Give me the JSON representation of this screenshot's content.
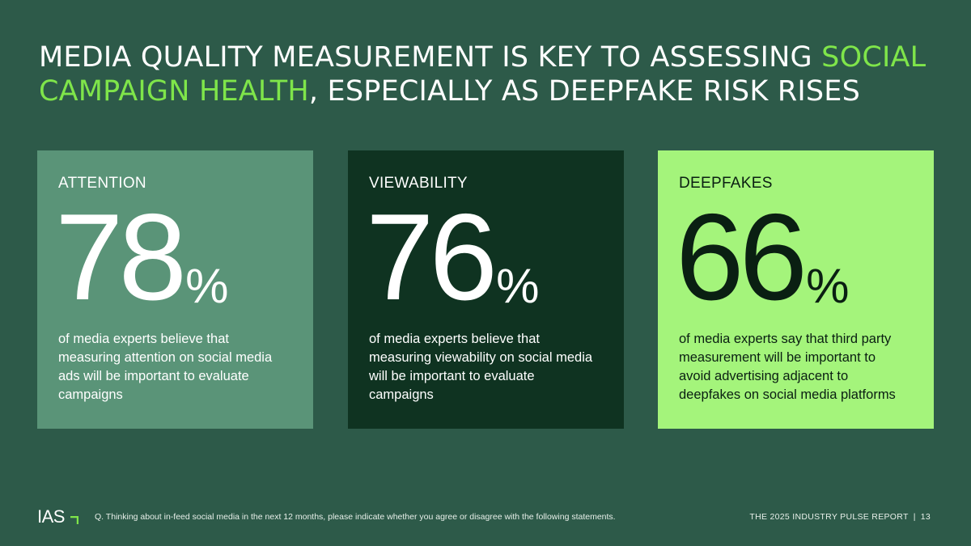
{
  "colors": {
    "background": "#2d5a49",
    "accent": "#7fe54a",
    "card_attention": "#5a9478",
    "card_viewability": "#0f3321",
    "card_deepfakes": "#a4f47b"
  },
  "title": {
    "part1": "MEDIA QUALITY MEASUREMENT IS KEY TO ASSESSING ",
    "highlight": "SOCIAL CAMPAIGN HEALTH",
    "part2": ", ESPECIALLY AS DEEPFAKE RISK RISES"
  },
  "cards": [
    {
      "label": "ATTENTION",
      "value": "78",
      "unit": "%",
      "description": "of media experts believe that measuring attention on social media ads will be important to evaluate campaigns"
    },
    {
      "label": "VIEWABILITY",
      "value": "76",
      "unit": "%",
      "description": "of media experts believe that measuring viewability on social media will be important to evaluate campaigns"
    },
    {
      "label": "DEEPFAKES",
      "value": "66",
      "unit": "%",
      "description": "of media experts say that third party measurement will be important to avoid advertising adjacent to deepfakes on social media platforms"
    }
  ],
  "footer": {
    "logo_text": "IAS",
    "logo_icon": "ias-corner-mark-icon",
    "question": "Q. Thinking about in-feed social media in the next 12 months, please indicate whether you agree or disagree with the following statements.",
    "report_name": "THE 2025 INDUSTRY PULSE REPORT",
    "separator": "|",
    "page_number": "13"
  }
}
